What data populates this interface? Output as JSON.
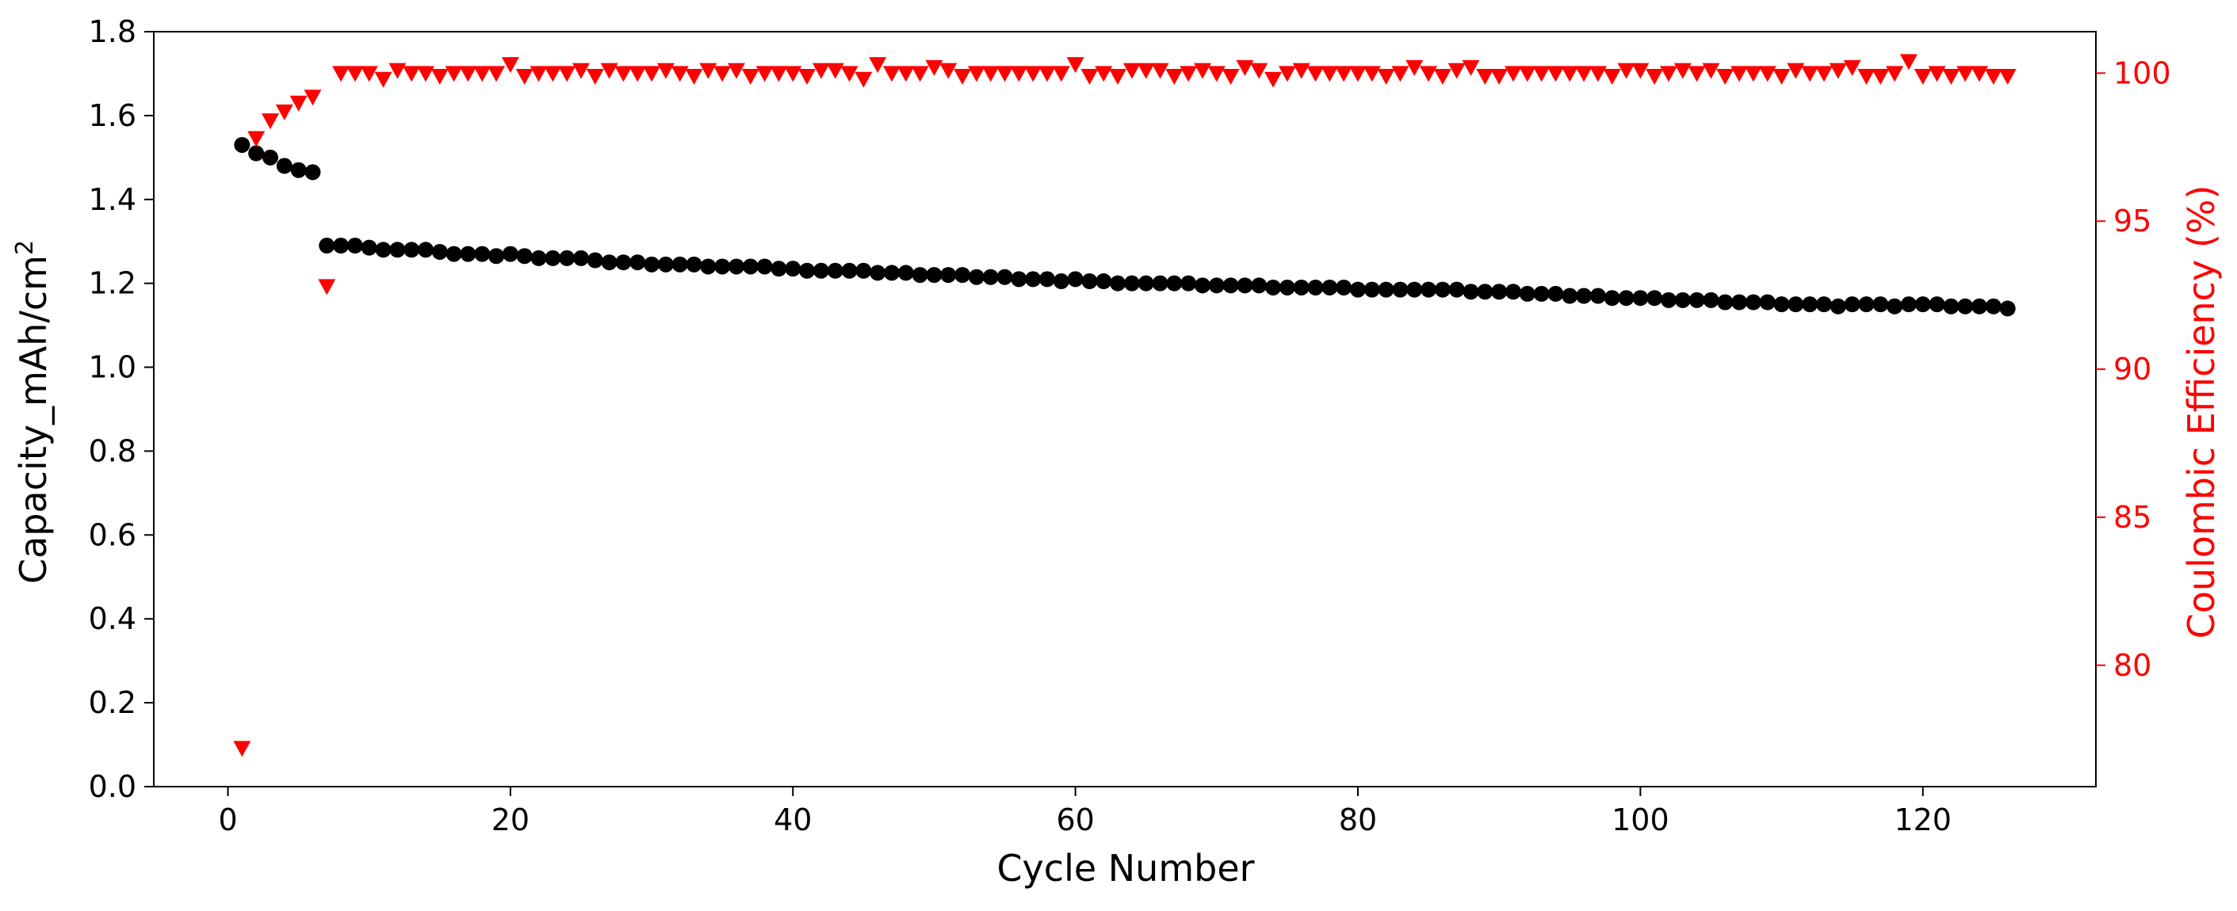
{
  "chart_data": {
    "type": "scatter",
    "title": "",
    "xlabel": "Cycle Number",
    "ylabel_prefix": "Capacity_mAh/cm",
    "ylabel_superscript": "2",
    "y2label": "Coulombic Efficiency (%)",
    "xlim": [
      -5.25,
      132.25
    ],
    "ylim": [
      0.0,
      1.8
    ],
    "y2lim": [
      75.9,
      101.4
    ],
    "xticks": [
      0,
      20,
      40,
      60,
      80,
      100,
      120
    ],
    "yticks": [
      0.0,
      0.2,
      0.4,
      0.6,
      0.8,
      1.0,
      1.2,
      1.4,
      1.6,
      1.8
    ],
    "y2ticks": [
      80,
      85,
      90,
      95,
      100
    ],
    "xtick_labels": [
      "0",
      "20",
      "40",
      "60",
      "80",
      "100",
      "120"
    ],
    "ytick_labels": [
      "0.0",
      "0.2",
      "0.4",
      "0.6",
      "0.8",
      "1.0",
      "1.2",
      "1.4",
      "1.6",
      "1.8"
    ],
    "y2tick_labels": [
      "80",
      "85",
      "90",
      "95",
      "100"
    ],
    "grid": false,
    "colors": {
      "capacity": "#000000",
      "efficiency": "#ff0000",
      "right_axis": "#ff0000",
      "left_axis": "#000000"
    },
    "series": [
      {
        "axis": "left",
        "marker": "circle",
        "color": "#000000",
        "points": [
          [
            1,
            1.53
          ],
          [
            2,
            1.51
          ],
          [
            3,
            1.5
          ],
          [
            4,
            1.48
          ],
          [
            5,
            1.47
          ],
          [
            6,
            1.465
          ],
          [
            7,
            1.29
          ],
          [
            8,
            1.29
          ],
          [
            9,
            1.29
          ],
          [
            10,
            1.285
          ],
          [
            11,
            1.28
          ],
          [
            12,
            1.28
          ],
          [
            13,
            1.28
          ],
          [
            14,
            1.28
          ],
          [
            15,
            1.275
          ],
          [
            16,
            1.27
          ],
          [
            17,
            1.27
          ],
          [
            18,
            1.27
          ],
          [
            19,
            1.265
          ],
          [
            20,
            1.27
          ],
          [
            21,
            1.265
          ],
          [
            22,
            1.26
          ],
          [
            23,
            1.26
          ],
          [
            24,
            1.26
          ],
          [
            25,
            1.26
          ],
          [
            26,
            1.255
          ],
          [
            27,
            1.25
          ],
          [
            28,
            1.25
          ],
          [
            29,
            1.25
          ],
          [
            30,
            1.245
          ],
          [
            31,
            1.245
          ],
          [
            32,
            1.245
          ],
          [
            33,
            1.245
          ],
          [
            34,
            1.24
          ],
          [
            35,
            1.24
          ],
          [
            36,
            1.24
          ],
          [
            37,
            1.24
          ],
          [
            38,
            1.24
          ],
          [
            39,
            1.235
          ],
          [
            40,
            1.235
          ],
          [
            41,
            1.23
          ],
          [
            42,
            1.23
          ],
          [
            43,
            1.23
          ],
          [
            44,
            1.23
          ],
          [
            45,
            1.23
          ],
          [
            46,
            1.225
          ],
          [
            47,
            1.225
          ],
          [
            48,
            1.225
          ],
          [
            49,
            1.22
          ],
          [
            50,
            1.22
          ],
          [
            51,
            1.22
          ],
          [
            52,
            1.22
          ],
          [
            53,
            1.215
          ],
          [
            54,
            1.215
          ],
          [
            55,
            1.215
          ],
          [
            56,
            1.21
          ],
          [
            57,
            1.21
          ],
          [
            58,
            1.21
          ],
          [
            59,
            1.205
          ],
          [
            60,
            1.21
          ],
          [
            61,
            1.205
          ],
          [
            62,
            1.205
          ],
          [
            63,
            1.2
          ],
          [
            64,
            1.2
          ],
          [
            65,
            1.2
          ],
          [
            66,
            1.2
          ],
          [
            67,
            1.2
          ],
          [
            68,
            1.2
          ],
          [
            69,
            1.195
          ],
          [
            70,
            1.195
          ],
          [
            71,
            1.195
          ],
          [
            72,
            1.195
          ],
          [
            73,
            1.195
          ],
          [
            74,
            1.19
          ],
          [
            75,
            1.19
          ],
          [
            76,
            1.19
          ],
          [
            77,
            1.19
          ],
          [
            78,
            1.19
          ],
          [
            79,
            1.19
          ],
          [
            80,
            1.185
          ],
          [
            81,
            1.185
          ],
          [
            82,
            1.185
          ],
          [
            83,
            1.185
          ],
          [
            84,
            1.185
          ],
          [
            85,
            1.185
          ],
          [
            86,
            1.185
          ],
          [
            87,
            1.185
          ],
          [
            88,
            1.18
          ],
          [
            89,
            1.18
          ],
          [
            90,
            1.18
          ],
          [
            91,
            1.18
          ],
          [
            92,
            1.175
          ],
          [
            93,
            1.175
          ],
          [
            94,
            1.175
          ],
          [
            95,
            1.17
          ],
          [
            96,
            1.17
          ],
          [
            97,
            1.17
          ],
          [
            98,
            1.165
          ],
          [
            99,
            1.165
          ],
          [
            100,
            1.165
          ],
          [
            101,
            1.165
          ],
          [
            102,
            1.16
          ],
          [
            103,
            1.16
          ],
          [
            104,
            1.16
          ],
          [
            105,
            1.16
          ],
          [
            106,
            1.155
          ],
          [
            107,
            1.155
          ],
          [
            108,
            1.155
          ],
          [
            109,
            1.155
          ],
          [
            110,
            1.15
          ],
          [
            111,
            1.15
          ],
          [
            112,
            1.15
          ],
          [
            113,
            1.15
          ],
          [
            114,
            1.145
          ],
          [
            115,
            1.15
          ],
          [
            116,
            1.15
          ],
          [
            117,
            1.15
          ],
          [
            118,
            1.145
          ],
          [
            119,
            1.15
          ],
          [
            120,
            1.15
          ],
          [
            121,
            1.15
          ],
          [
            122,
            1.145
          ],
          [
            123,
            1.145
          ],
          [
            124,
            1.145
          ],
          [
            125,
            1.145
          ],
          [
            126,
            1.14
          ]
        ]
      },
      {
        "axis": "right",
        "marker": "triangle-down",
        "color": "#ff0000",
        "points": [
          [
            1,
            77.2
          ],
          [
            2,
            97.8
          ],
          [
            3,
            98.4
          ],
          [
            4,
            98.7
          ],
          [
            5,
            99.0
          ],
          [
            6,
            99.2
          ],
          [
            7,
            92.8
          ],
          [
            8,
            100.0
          ],
          [
            9,
            100.0
          ],
          [
            10,
            100.0
          ],
          [
            11,
            99.8
          ],
          [
            12,
            100.1
          ],
          [
            13,
            100.0
          ],
          [
            14,
            100.0
          ],
          [
            15,
            99.9
          ],
          [
            16,
            100.0
          ],
          [
            17,
            100.0
          ],
          [
            18,
            100.0
          ],
          [
            19,
            100.0
          ],
          [
            20,
            100.3
          ],
          [
            21,
            99.9
          ],
          [
            22,
            100.0
          ],
          [
            23,
            100.0
          ],
          [
            24,
            100.0
          ],
          [
            25,
            100.1
          ],
          [
            26,
            99.9
          ],
          [
            27,
            100.1
          ],
          [
            28,
            100.0
          ],
          [
            29,
            100.0
          ],
          [
            30,
            100.0
          ],
          [
            31,
            100.1
          ],
          [
            32,
            100.0
          ],
          [
            33,
            99.9
          ],
          [
            34,
            100.1
          ],
          [
            35,
            100.0
          ],
          [
            36,
            100.1
          ],
          [
            37,
            99.9
          ],
          [
            38,
            100.0
          ],
          [
            39,
            100.0
          ],
          [
            40,
            100.0
          ],
          [
            41,
            99.9
          ],
          [
            42,
            100.1
          ],
          [
            43,
            100.1
          ],
          [
            44,
            100.0
          ],
          [
            45,
            99.8
          ],
          [
            46,
            100.3
          ],
          [
            47,
            100.0
          ],
          [
            48,
            100.0
          ],
          [
            49,
            100.0
          ],
          [
            50,
            100.2
          ],
          [
            51,
            100.1
          ],
          [
            52,
            99.9
          ],
          [
            53,
            100.0
          ],
          [
            54,
            100.0
          ],
          [
            55,
            100.0
          ],
          [
            56,
            100.0
          ],
          [
            57,
            100.0
          ],
          [
            58,
            100.0
          ],
          [
            59,
            100.0
          ],
          [
            60,
            100.3
          ],
          [
            61,
            99.9
          ],
          [
            62,
            100.0
          ],
          [
            63,
            99.9
          ],
          [
            64,
            100.1
          ],
          [
            65,
            100.1
          ],
          [
            66,
            100.1
          ],
          [
            67,
            99.9
          ],
          [
            68,
            100.0
          ],
          [
            69,
            100.1
          ],
          [
            70,
            100.0
          ],
          [
            71,
            99.9
          ],
          [
            72,
            100.2
          ],
          [
            73,
            100.1
          ],
          [
            74,
            99.8
          ],
          [
            75,
            100.0
          ],
          [
            76,
            100.1
          ],
          [
            77,
            100.0
          ],
          [
            78,
            100.0
          ],
          [
            79,
            100.0
          ],
          [
            80,
            100.0
          ],
          [
            81,
            100.0
          ],
          [
            82,
            99.9
          ],
          [
            83,
            100.0
          ],
          [
            84,
            100.2
          ],
          [
            85,
            100.0
          ],
          [
            86,
            99.9
          ],
          [
            87,
            100.1
          ],
          [
            88,
            100.2
          ],
          [
            89,
            99.9
          ],
          [
            90,
            99.9
          ],
          [
            91,
            100.0
          ],
          [
            92,
            100.0
          ],
          [
            93,
            100.0
          ],
          [
            94,
            100.0
          ],
          [
            95,
            100.0
          ],
          [
            96,
            100.0
          ],
          [
            97,
            100.0
          ],
          [
            98,
            99.9
          ],
          [
            99,
            100.1
          ],
          [
            100,
            100.1
          ],
          [
            101,
            99.9
          ],
          [
            102,
            100.0
          ],
          [
            103,
            100.1
          ],
          [
            104,
            100.0
          ],
          [
            105,
            100.1
          ],
          [
            106,
            99.9
          ],
          [
            107,
            100.0
          ],
          [
            108,
            100.0
          ],
          [
            109,
            100.0
          ],
          [
            110,
            99.9
          ],
          [
            111,
            100.1
          ],
          [
            112,
            100.0
          ],
          [
            113,
            100.0
          ],
          [
            114,
            100.1
          ],
          [
            115,
            100.2
          ],
          [
            116,
            99.9
          ],
          [
            117,
            99.9
          ],
          [
            118,
            100.0
          ],
          [
            119,
            100.4
          ],
          [
            120,
            99.9
          ],
          [
            121,
            100.0
          ],
          [
            122,
            99.9
          ],
          [
            123,
            100.0
          ],
          [
            124,
            100.0
          ],
          [
            125,
            99.9
          ],
          [
            126,
            99.9
          ]
        ]
      }
    ]
  }
}
